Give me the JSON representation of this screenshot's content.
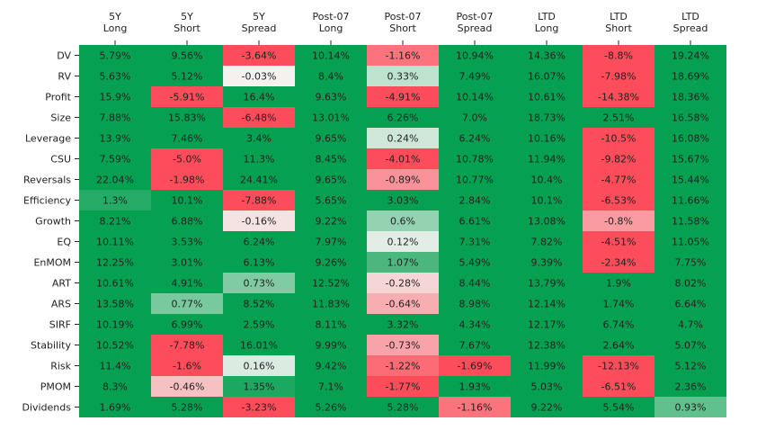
{
  "chart_data": {
    "type": "heatmap",
    "columns": [
      [
        "5Y",
        "Long"
      ],
      [
        "5Y",
        "Short"
      ],
      [
        "5Y",
        "Spread"
      ],
      [
        "Post-07",
        "Long"
      ],
      [
        "Post-07",
        "Short"
      ],
      [
        "Post-07",
        "Spread"
      ],
      [
        "LTD",
        "Long"
      ],
      [
        "LTD",
        "Short"
      ],
      [
        "LTD",
        "Spread"
      ]
    ],
    "rows": [
      "DV",
      "RV",
      "Profit",
      "Size",
      "Leverage",
      "CSU",
      "Reversals",
      "Efficiency",
      "Growth",
      "EQ",
      "EnMOM",
      "ART",
      "ARS",
      "SIRF",
      "Stability",
      "Risk",
      "PMOM",
      "Dividends"
    ],
    "values": [
      [
        5.79,
        9.56,
        -3.64,
        10.14,
        -1.16,
        10.94,
        14.36,
        -8.8,
        19.24
      ],
      [
        5.63,
        5.12,
        -0.03,
        8.4,
        0.33,
        7.49,
        16.07,
        -7.98,
        18.69
      ],
      [
        15.9,
        -5.91,
        16.4,
        9.63,
        -4.91,
        10.14,
        10.61,
        -14.38,
        18.36
      ],
      [
        7.88,
        15.83,
        -6.48,
        13.01,
        6.26,
        7.0,
        18.73,
        2.51,
        16.58
      ],
      [
        13.9,
        7.46,
        3.4,
        9.65,
        0.24,
        6.24,
        10.16,
        -10.5,
        16.08
      ],
      [
        7.59,
        -5.0,
        11.3,
        8.45,
        -4.01,
        10.78,
        11.94,
        -9.82,
        15.67
      ],
      [
        22.04,
        -1.98,
        24.41,
        9.65,
        -0.89,
        10.77,
        10.4,
        -4.77,
        15.44
      ],
      [
        1.3,
        10.1,
        -7.88,
        5.65,
        3.03,
        2.84,
        10.1,
        -6.53,
        11.66
      ],
      [
        8.21,
        6.88,
        -0.16,
        9.22,
        0.6,
        6.61,
        13.08,
        -0.8,
        11.58
      ],
      [
        10.11,
        3.53,
        6.24,
        7.97,
        0.12,
        7.31,
        7.82,
        -4.51,
        11.05
      ],
      [
        12.25,
        3.01,
        6.13,
        9.26,
        1.07,
        5.49,
        9.39,
        -2.34,
        7.75
      ],
      [
        10.61,
        4.91,
        0.73,
        12.52,
        -0.28,
        8.44,
        13.79,
        1.9,
        8.02
      ],
      [
        13.58,
        0.77,
        8.52,
        11.83,
        -0.64,
        8.98,
        12.14,
        1.74,
        6.64
      ],
      [
        10.19,
        6.99,
        2.59,
        8.11,
        3.32,
        4.34,
        12.17,
        6.74,
        4.7
      ],
      [
        10.52,
        -7.78,
        16.01,
        9.99,
        -0.73,
        7.67,
        12.38,
        2.64,
        5.07
      ],
      [
        11.4,
        -1.6,
        0.16,
        9.42,
        -1.22,
        -1.69,
        11.99,
        -12.13,
        5.12
      ],
      [
        8.3,
        -0.46,
        1.35,
        7.1,
        -1.77,
        1.93,
        5.03,
        -6.51,
        2.36
      ],
      [
        1.69,
        5.28,
        -3.23,
        5.26,
        5.28,
        -1.16,
        9.22,
        5.54,
        0.93
      ]
    ],
    "labels": [
      [
        "5.79%",
        "9.56%",
        "-3.64%",
        "10.14%",
        "-1.16%",
        "10.94%",
        "14.36%",
        "-8.8%",
        "19.24%"
      ],
      [
        "5.63%",
        "5.12%",
        "-0.03%",
        "8.4%",
        "0.33%",
        "7.49%",
        "16.07%",
        "-7.98%",
        "18.69%"
      ],
      [
        "15.9%",
        "-5.91%",
        "16.4%",
        "9.63%",
        "-4.91%",
        "10.14%",
        "10.61%",
        "-14.38%",
        "18.36%"
      ],
      [
        "7.88%",
        "15.83%",
        "-6.48%",
        "13.01%",
        "6.26%",
        "7.0%",
        "18.73%",
        "2.51%",
        "16.58%"
      ],
      [
        "13.9%",
        "7.46%",
        "3.4%",
        "9.65%",
        "0.24%",
        "6.24%",
        "10.16%",
        "-10.5%",
        "16.08%"
      ],
      [
        "7.59%",
        "-5.0%",
        "11.3%",
        "8.45%",
        "-4.01%",
        "10.78%",
        "11.94%",
        "-9.82%",
        "15.67%"
      ],
      [
        "22.04%",
        "-1.98%",
        "24.41%",
        "9.65%",
        "-0.89%",
        "10.77%",
        "10.4%",
        "-4.77%",
        "15.44%"
      ],
      [
        "1.3%",
        "10.1%",
        "-7.88%",
        "5.65%",
        "3.03%",
        "2.84%",
        "10.1%",
        "-6.53%",
        "11.66%"
      ],
      [
        "8.21%",
        "6.88%",
        "-0.16%",
        "9.22%",
        "0.6%",
        "6.61%",
        "13.08%",
        "-0.8%",
        "11.58%"
      ],
      [
        "10.11%",
        "3.53%",
        "6.24%",
        "7.97%",
        "0.12%",
        "7.31%",
        "7.82%",
        "-4.51%",
        "11.05%"
      ],
      [
        "12.25%",
        "3.01%",
        "6.13%",
        "9.26%",
        "1.07%",
        "5.49%",
        "9.39%",
        "-2.34%",
        "7.75%"
      ],
      [
        "10.61%",
        "4.91%",
        "0.73%",
        "12.52%",
        "-0.28%",
        "8.44%",
        "13.79%",
        "1.9%",
        "8.02%"
      ],
      [
        "13.58%",
        "0.77%",
        "8.52%",
        "11.83%",
        "-0.64%",
        "8.98%",
        "12.14%",
        "1.74%",
        "6.64%"
      ],
      [
        "10.19%",
        "6.99%",
        "2.59%",
        "8.11%",
        "3.32%",
        "4.34%",
        "12.17%",
        "6.74%",
        "4.7%"
      ],
      [
        "10.52%",
        "-7.78%",
        "16.01%",
        "9.99%",
        "-0.73%",
        "7.67%",
        "12.38%",
        "2.64%",
        "5.07%"
      ],
      [
        "11.4%",
        "-1.6%",
        "0.16%",
        "9.42%",
        "-1.22%",
        "-1.69%",
        "11.99%",
        "-12.13%",
        "5.12%"
      ],
      [
        "8.3%",
        "-0.46%",
        "1.35%",
        "7.1%",
        "-1.77%",
        "1.93%",
        "5.03%",
        "-6.51%",
        "2.36%"
      ],
      [
        "1.69%",
        "5.28%",
        "-3.23%",
        "5.26%",
        "5.28%",
        "-1.16%",
        "9.22%",
        "5.54%",
        "0.93%"
      ]
    ],
    "colors": {
      "positive": "#05a050",
      "negative": "#fd4d5b",
      "neutral": "#f4f4f2",
      "text": "#222222"
    },
    "x_axis_position": "top",
    "grid": false
  }
}
